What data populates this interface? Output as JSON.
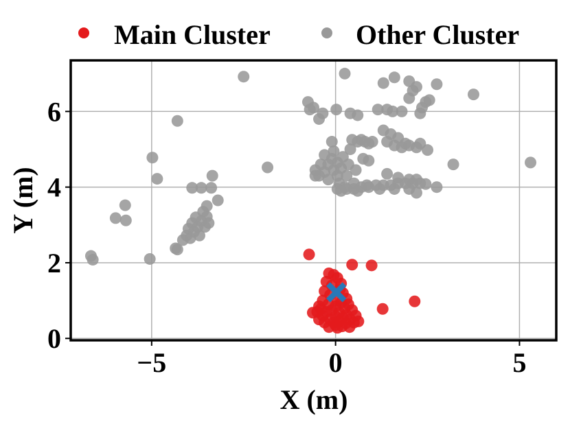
{
  "chart_data": {
    "type": "scatter",
    "xlabel": "X (m)",
    "ylabel": "Y (m)",
    "xlim": [
      -7.2,
      6.0
    ],
    "ylim": [
      -0.05,
      7.35
    ],
    "xticks": [
      -5,
      0,
      5
    ],
    "xtick_labels": [
      "−5",
      "0",
      "5"
    ],
    "yticks": [
      0,
      2,
      4,
      6
    ],
    "ytick_labels": [
      "0",
      "2",
      "4",
      "6"
    ],
    "grid": true,
    "legend_position": "top",
    "series": [
      {
        "name": "Main Cluster",
        "color": "#e41a1c",
        "points": [
          [
            -0.72,
            2.22
          ],
          [
            0.45,
            1.95
          ],
          [
            0.98,
            1.93
          ],
          [
            2.15,
            0.98
          ],
          [
            1.28,
            0.78
          ],
          [
            -0.18,
            1.72
          ],
          [
            -0.05,
            1.68
          ],
          [
            0.05,
            1.6
          ],
          [
            -0.25,
            1.5
          ],
          [
            0.15,
            1.45
          ],
          [
            -0.1,
            1.4
          ],
          [
            0.12,
            1.3
          ],
          [
            -0.3,
            1.25
          ],
          [
            0.2,
            1.2
          ],
          [
            -0.15,
            1.15
          ],
          [
            0.3,
            1.05
          ],
          [
            -0.35,
            1.0
          ],
          [
            0.05,
            1.0
          ],
          [
            -0.2,
            0.9
          ],
          [
            0.35,
            0.9
          ],
          [
            -0.45,
            0.85
          ],
          [
            0.0,
            0.85
          ],
          [
            0.25,
            0.8
          ],
          [
            -0.1,
            0.75
          ],
          [
            0.45,
            0.75
          ],
          [
            -0.5,
            0.7
          ],
          [
            -0.25,
            0.7
          ],
          [
            0.1,
            0.68
          ],
          [
            0.3,
            0.62
          ],
          [
            -0.62,
            0.68
          ],
          [
            0.55,
            0.6
          ],
          [
            -0.35,
            0.6
          ],
          [
            0.0,
            0.58
          ],
          [
            0.2,
            0.55
          ],
          [
            -0.15,
            0.5
          ],
          [
            0.4,
            0.5
          ],
          [
            0.62,
            0.45
          ],
          [
            -0.45,
            0.5
          ],
          [
            0.1,
            0.45
          ],
          [
            -0.05,
            0.42
          ],
          [
            0.28,
            0.4
          ],
          [
            0.5,
            0.42
          ],
          [
            -0.3,
            0.42
          ],
          [
            0.0,
            0.35
          ],
          [
            0.18,
            0.32
          ],
          [
            -0.18,
            0.3
          ],
          [
            0.38,
            0.3
          ],
          [
            0.05,
            0.28
          ],
          [
            -0.4,
            0.78
          ],
          [
            0.15,
            0.95
          ]
        ]
      },
      {
        "name": "Other Cluster",
        "color": "#999999",
        "points": [
          [
            -6.65,
            2.18
          ],
          [
            -6.6,
            2.08
          ],
          [
            -5.98,
            3.18
          ],
          [
            -5.72,
            3.52
          ],
          [
            -5.7,
            3.12
          ],
          [
            -5.05,
            2.1
          ],
          [
            -4.98,
            4.78
          ],
          [
            -4.85,
            4.22
          ],
          [
            -4.3,
            5.75
          ],
          [
            -2.5,
            6.92
          ],
          [
            -1.85,
            4.52
          ],
          [
            -4.35,
            2.38
          ],
          [
            -4.3,
            2.35
          ],
          [
            -4.15,
            2.6
          ],
          [
            -4.05,
            2.72
          ],
          [
            -4.0,
            2.9
          ],
          [
            -3.95,
            2.65
          ],
          [
            -3.9,
            3.05
          ],
          [
            -3.85,
            2.82
          ],
          [
            -3.8,
            3.2
          ],
          [
            -3.75,
            2.95
          ],
          [
            -3.7,
            2.72
          ],
          [
            -3.65,
            3.1
          ],
          [
            -3.6,
            3.35
          ],
          [
            -3.55,
            2.95
          ],
          [
            -3.5,
            3.22
          ],
          [
            -3.45,
            3.05
          ],
          [
            -3.5,
            3.5
          ],
          [
            -3.9,
            3.98
          ],
          [
            -3.35,
            4.3
          ],
          [
            -3.38,
            3.98
          ],
          [
            -3.65,
            3.98
          ],
          [
            -3.2,
            3.65
          ],
          [
            -0.75,
            6.25
          ],
          [
            -0.6,
            6.1
          ],
          [
            -0.7,
            6.05
          ],
          [
            -0.45,
            5.8
          ],
          [
            -0.35,
            5.95
          ],
          [
            0.02,
            6.05
          ],
          [
            0.25,
            7.0
          ],
          [
            0.4,
            5.95
          ],
          [
            0.6,
            5.9
          ],
          [
            1.15,
            6.05
          ],
          [
            1.3,
            6.75
          ],
          [
            1.4,
            6.05
          ],
          [
            1.6,
            6.9
          ],
          [
            1.55,
            6.0
          ],
          [
            1.8,
            6.0
          ],
          [
            2.0,
            6.8
          ],
          [
            2.1,
            6.55
          ],
          [
            2.2,
            6.65
          ],
          [
            2.0,
            6.35
          ],
          [
            2.3,
            5.95
          ],
          [
            2.35,
            6.1
          ],
          [
            2.45,
            6.25
          ],
          [
            2.55,
            6.3
          ],
          [
            2.75,
            6.72
          ],
          [
            3.75,
            6.45
          ],
          [
            5.3,
            4.65
          ],
          [
            3.2,
            4.6
          ],
          [
            2.75,
            4.0
          ],
          [
            1.3,
            5.5
          ],
          [
            1.5,
            5.4
          ],
          [
            1.7,
            5.3
          ],
          [
            1.9,
            5.15
          ],
          [
            2.2,
            5.05
          ],
          [
            2.5,
            4.98
          ],
          [
            1.4,
            5.2
          ],
          [
            1.6,
            5.1
          ],
          [
            1.8,
            5.05
          ],
          [
            2.0,
            5.1
          ],
          [
            2.3,
            5.15
          ],
          [
            -0.55,
            4.45
          ],
          [
            -0.45,
            4.3
          ],
          [
            -0.4,
            4.6
          ],
          [
            -0.3,
            4.85
          ],
          [
            -0.3,
            4.4
          ],
          [
            -0.2,
            4.6
          ],
          [
            -0.2,
            4.2
          ],
          [
            -0.1,
            4.75
          ],
          [
            -0.05,
            4.95
          ],
          [
            -0.05,
            4.45
          ],
          [
            0.05,
            4.3
          ],
          [
            0.05,
            4.65
          ],
          [
            -0.1,
            5.2
          ],
          [
            0.1,
            4.1
          ],
          [
            0.15,
            4.5
          ],
          [
            0.2,
            4.8
          ],
          [
            0.25,
            4.0
          ],
          [
            0.3,
            4.3
          ],
          [
            0.35,
            4.6
          ],
          [
            0.4,
            5.0
          ],
          [
            0.45,
            5.25
          ],
          [
            0.5,
            4.1
          ],
          [
            0.55,
            4.45
          ],
          [
            0.6,
            5.2
          ],
          [
            0.7,
            5.25
          ],
          [
            0.8,
            5.2
          ],
          [
            0.9,
            5.15
          ],
          [
            1.0,
            5.2
          ],
          [
            0.75,
            4.75
          ],
          [
            0.9,
            4.7
          ],
          [
            0.05,
            3.95
          ],
          [
            0.15,
            3.9
          ],
          [
            0.3,
            3.95
          ],
          [
            0.5,
            3.95
          ],
          [
            0.7,
            4.0
          ],
          [
            0.9,
            4.0
          ],
          [
            1.1,
            4.05
          ],
          [
            1.3,
            4.05
          ],
          [
            1.5,
            4.05
          ],
          [
            1.7,
            4.1
          ],
          [
            1.9,
            4.1
          ],
          [
            2.1,
            4.1
          ],
          [
            2.3,
            4.1
          ],
          [
            2.45,
            4.08
          ],
          [
            1.4,
            4.35
          ],
          [
            1.7,
            4.25
          ],
          [
            2.0,
            4.2
          ],
          [
            2.2,
            4.2
          ],
          [
            1.2,
            3.95
          ],
          [
            1.6,
            3.95
          ],
          [
            2.0,
            3.95
          ],
          [
            2.2,
            3.85
          ],
          [
            0.6,
            3.9
          ],
          [
            0.85,
            4.05
          ],
          [
            -0.55,
            4.3
          ]
        ]
      },
      {
        "name": "",
        "color": "#2878b8",
        "marker": "X",
        "points": [
          [
            0.02,
            1.22
          ]
        ]
      }
    ]
  }
}
